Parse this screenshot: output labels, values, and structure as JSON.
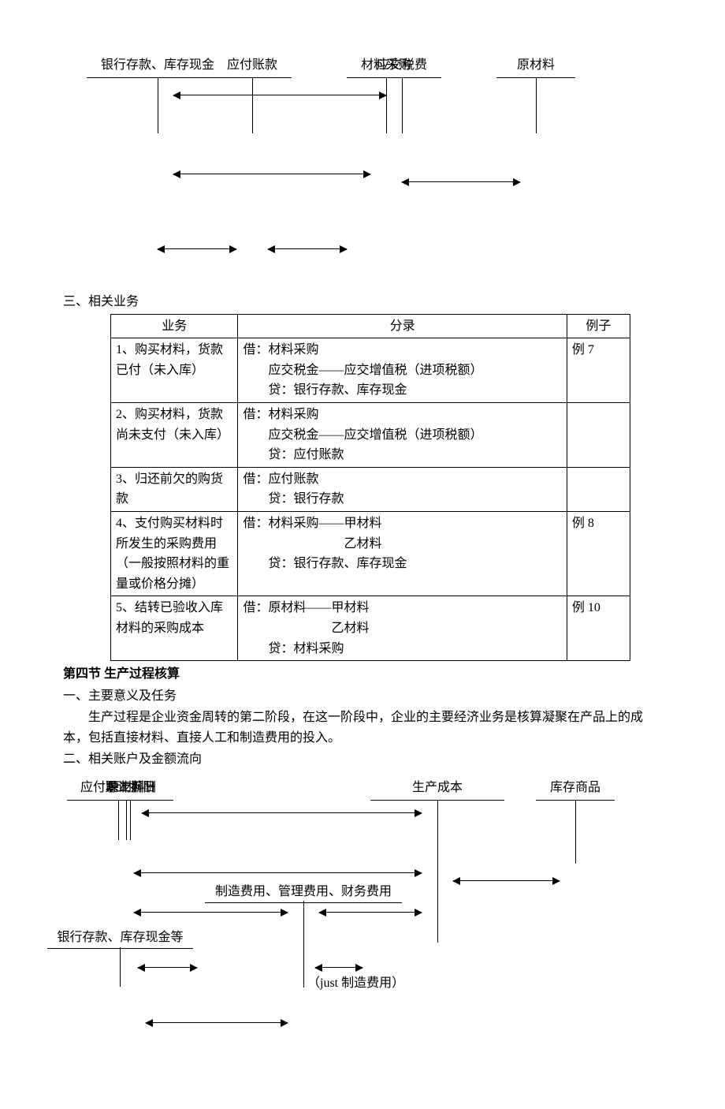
{
  "diagram1": {
    "accounts": {
      "bank": "银行存款、库存现金",
      "tax": "应交税费",
      "procure": "材料采购",
      "raw": "原材料",
      "payable": "应付账款"
    }
  },
  "section3_heading": "三、相关业务",
  "table": {
    "headers": {
      "biz": "业务",
      "entry": "分录",
      "ex": "例子"
    },
    "rows": [
      {
        "biz": "1、购买材料，货款已付（未入库）",
        "entry": "借：材料采购\n　　应交税金——应交增值税（进项税额）\n　　贷：银行存款、库存现金",
        "ex": "例 7"
      },
      {
        "biz": "2、购买材料，货款尚未支付（未入库）",
        "entry": "借：材料采购\n　　应交税金——应交增值税（进项税额）\n　　贷：应付账款",
        "ex": ""
      },
      {
        "biz": "3、归还前欠的购货款",
        "entry": "借：应付账款\n　　贷：银行存款",
        "ex": ""
      },
      {
        "biz": "4、支付购买材料时所发生的采购费用（一般按照材料的重量或价格分摊）",
        "entry": "借：材料采购——甲材料\n　　　　　　　　乙材料\n　　贷：银行存款、库存现金",
        "ex": "例 8"
      },
      {
        "biz": "5、结转已验收入库材料的采购成本",
        "entry": "借：原材料——甲材料\n　　　　　　　乙材料\n　　贷：材料采购",
        "ex": "例 10"
      }
    ]
  },
  "section4": {
    "title": "第四节  生产过程核算",
    "sub1": "一、主要意义及任务",
    "para": "生产过程是企业资金周转的第二阶段，在这一阶段中，企业的主要经济业务是核算凝聚在产品上的成本，包括直接材料、直接人工和制造费用的投入。",
    "sub2": "二、相关账户及金额流向"
  },
  "diagram2": {
    "accounts": {
      "raw": "原材料",
      "prodcost": "生产成本",
      "salary": "应付职工薪酬",
      "inventory": "库存商品",
      "bank": "银行存款、库存现金等",
      "depr": "累计折旧"
    },
    "labels": {
      "expenses": "制造费用、管理费用、财务费用",
      "just": "（just 制造费用）"
    }
  }
}
